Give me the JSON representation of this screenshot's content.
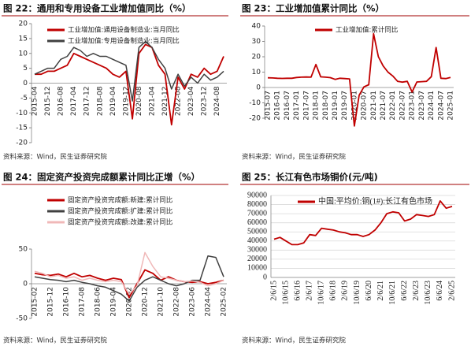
{
  "chart_data": [
    {
      "type": "line",
      "title": "图 22：通用和专用设备工业增加值同比（%）",
      "source": "资料来源：Wind，民生证券研究院",
      "categories": [
        "2015-04",
        null,
        "2015-12",
        null,
        "2016-08",
        null,
        "2017-04",
        null,
        "2017-12",
        null,
        "2018-08",
        null,
        "2019-04",
        null,
        "2019-12",
        null,
        "2020-08",
        null,
        "2021-04",
        null,
        "2021-12",
        null,
        "2022-08",
        null,
        "2023-04",
        null,
        "2023-12",
        null,
        "2024-08",
        null
      ],
      "series": [
        {
          "name": "工业增加值:通用设备制造业:当月同比",
          "color": "#c00000",
          "values": [
            3,
            3,
            4,
            4,
            5,
            6,
            10,
            9,
            8,
            7,
            6,
            5,
            3,
            2,
            4,
            -12,
            10,
            13,
            12,
            6,
            3,
            -14,
            2,
            -2,
            3,
            2,
            5,
            3,
            4,
            9
          ]
        },
        {
          "name": "工业增加值:专用设备制造业:当月同比",
          "color": "#404040",
          "values": [
            3,
            4,
            5,
            5,
            8,
            9,
            12,
            11,
            9,
            10,
            9,
            9,
            8,
            7,
            6,
            -6,
            12,
            14,
            12,
            8,
            5,
            -2,
            3,
            -1,
            2,
            0,
            3,
            1,
            2,
            4
          ]
        }
      ],
      "ylim": [
        -20,
        20
      ],
      "yticks": [
        -20,
        -15,
        -10,
        -5,
        0,
        5,
        10,
        15,
        20
      ],
      "grid": false,
      "legend": "upper left"
    },
    {
      "type": "line",
      "title": "图 23：工业增加值累计同比（%）",
      "source": "资料来源：Wind，民生证券研究院",
      "categories": [
        "2015-07",
        null,
        "2016-01",
        null,
        "2016-07",
        null,
        "2017-01",
        null,
        "2017-07",
        null,
        "2018-01",
        null,
        "2018-07",
        null,
        "2019-01",
        null,
        "2019-07",
        null,
        "2020-01",
        null,
        "2020-07",
        null,
        "2021-01",
        null,
        "2021-07",
        null,
        "2022-01",
        null,
        "2022-07",
        null,
        "2023-01",
        null,
        "2023-07",
        null,
        "2024-01",
        null,
        "2024-07",
        null,
        "2025-01"
      ],
      "series": [
        {
          "name": "工业增加值:累计同比",
          "color": "#c00000",
          "values": [
            6.3,
            6.2,
            6,
            5.9,
            6,
            6,
            6.5,
            6.7,
            6.8,
            6.7,
            15,
            6.9,
            6.7,
            6.4,
            5.3,
            6,
            5.8,
            5.6,
            -25,
            -5,
            0.4,
            1.8,
            35,
            20,
            14,
            10,
            7.5,
            4,
            3.5,
            4,
            -3,
            3.6,
            3.8,
            4,
            7,
            26,
            6,
            5.8,
            6.5
          ]
        }
      ],
      "ylim": [
        -20,
        40
      ],
      "yticks": [
        -20,
        -10,
        0,
        10,
        20,
        30,
        40
      ],
      "grid": false,
      "legend": "upper center"
    },
    {
      "type": "line",
      "title": "图 24：固定资产投资完成额累计同比正增（%）",
      "source": "资料来源：Wind，民生证券研究院",
      "categories": [
        "2015-02",
        null,
        "2015-12",
        null,
        "2016-10",
        null,
        "2017-08",
        null,
        "2018-06",
        null,
        "2019-04",
        null,
        "2020-02",
        null,
        "2020-12",
        null,
        "2021-10",
        null,
        "2022-08",
        null,
        "2023-06",
        null,
        "2024-04",
        null,
        "2025-02"
      ],
      "series": [
        {
          "name": "固定资产投资完成额:新建:累计同比",
          "color": "#c00000",
          "values": [
            15,
            13,
            12,
            14,
            10,
            15,
            10,
            12,
            8,
            5,
            8,
            6,
            -20,
            0,
            20,
            15,
            5,
            10,
            5,
            3,
            2,
            3,
            0,
            2,
            5
          ]
        },
        {
          "name": "固定资产投资完成额:扩建:累计同比",
          "color": "#404040",
          "values": [
            10,
            8,
            6,
            5,
            3,
            5,
            2,
            0,
            -3,
            -5,
            -10,
            -15,
            -25,
            -5,
            5,
            10,
            5,
            0,
            -3,
            0,
            5,
            5,
            40,
            38,
            10
          ]
        },
        {
          "name": "固定资产投资完成额:改建:累计同比",
          "color": "#f0b8b8",
          "values": [
            18,
            15,
            10,
            12,
            8,
            10,
            5,
            8,
            5,
            3,
            5,
            3,
            -15,
            -3,
            45,
            25,
            10,
            8,
            5,
            3,
            4,
            2,
            -3,
            0,
            5
          ]
        }
      ],
      "ylim": [
        -50,
        50
      ],
      "yticks": [
        -50,
        0,
        50
      ],
      "grid": false,
      "legend": "upper left"
    },
    {
      "type": "line",
      "title": "图 25：长江有色市场铜价(元/吨)",
      "source": "资料来源：Wind，民生证券研究院",
      "categories": [
        "2/6/15",
        null,
        "10/6/15",
        null,
        "6/6/16",
        null,
        "2/6/17",
        null,
        "10/6/17",
        null,
        "6/6/18",
        null,
        "2/6/19",
        null,
        "10/6/19",
        null,
        "6/6/20",
        null,
        "2/6/21",
        null,
        "10/6/21",
        null,
        "6/6/22",
        null,
        "2/6/23",
        null,
        "10/6/23",
        null,
        "6/6/24",
        null,
        "2/6/25"
      ],
      "series": [
        {
          "name": "中国:平均价:铜(1#):长江有色市场",
          "color": "#c00000",
          "values": [
            42000,
            44000,
            40000,
            36000,
            36000,
            38000,
            47000,
            46000,
            54000,
            53000,
            52000,
            50000,
            49000,
            47000,
            47000,
            45000,
            47000,
            52000,
            60000,
            70000,
            72000,
            71000,
            62000,
            64000,
            69000,
            68000,
            67000,
            69000,
            84000,
            76000,
            78000
          ]
        }
      ],
      "ylim": [
        0,
        90000
      ],
      "yticks": [
        0,
        10000,
        20000,
        30000,
        40000,
        50000,
        60000,
        70000,
        80000,
        90000
      ],
      "grid": true,
      "legend": "upper left"
    }
  ]
}
